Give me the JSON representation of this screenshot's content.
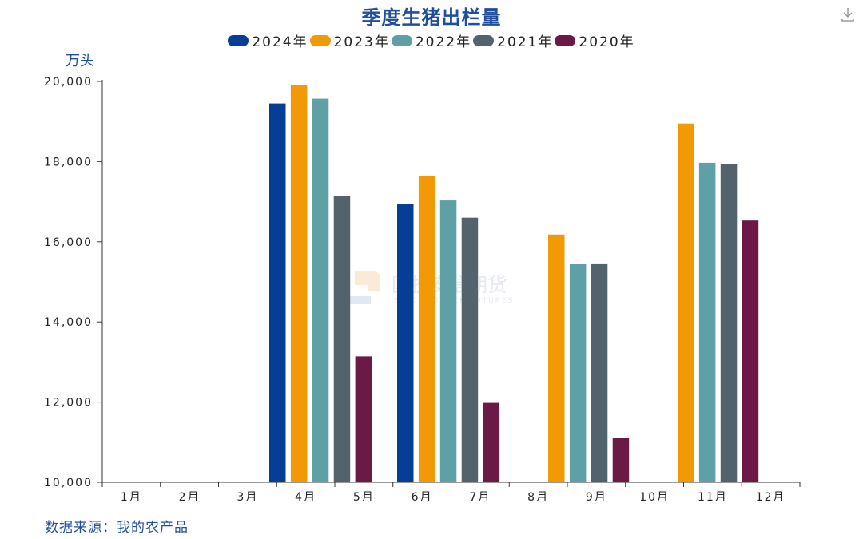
{
  "header": {
    "title": "季度生猪出栏量",
    "unit": "万头"
  },
  "watermark": {
    "text": "国投安信期货",
    "subtext": "SDIC ESSENCE FUTURES"
  },
  "footer": {
    "source": "数据来源：我的农产品"
  },
  "icons": {
    "download": "download-icon"
  },
  "chart_data": {
    "type": "bar",
    "title": "季度生猪出栏量",
    "ylabel": "万头",
    "xlabel": "",
    "ylim": [
      10000,
      20000
    ],
    "yticks": [
      10000,
      12000,
      14000,
      16000,
      18000,
      20000
    ],
    "ytick_labels": [
      "10,000",
      "12,000",
      "14,000",
      "16,000",
      "18,000",
      "20,000"
    ],
    "grid": false,
    "legend_position": "top-center",
    "categories": [
      "1月",
      "2月",
      "3月",
      "4月",
      "5月",
      "6月",
      "7月",
      "8月",
      "9月",
      "10月",
      "11月",
      "12月"
    ],
    "series": [
      {
        "name": "2024年",
        "color": "#063d96",
        "values": [
          null,
          null,
          null,
          19450,
          null,
          16950,
          null,
          null,
          null,
          null,
          null,
          null
        ]
      },
      {
        "name": "2023年",
        "color": "#f29a05",
        "values": [
          null,
          null,
          null,
          19900,
          null,
          17650,
          null,
          16180,
          null,
          null,
          18950,
          null
        ]
      },
      {
        "name": "2022年",
        "color": "#5fa0a7",
        "values": [
          null,
          null,
          null,
          19570,
          null,
          17030,
          null,
          null,
          15450,
          null,
          17970,
          null
        ]
      },
      {
        "name": "2021年",
        "color": "#53636d",
        "values": [
          null,
          null,
          null,
          17150,
          null,
          16600,
          null,
          null,
          15460,
          null,
          17940,
          null
        ]
      },
      {
        "name": "2020年",
        "color": "#6a1a45",
        "values": [
          null,
          null,
          null,
          null,
          13140,
          null,
          11980,
          null,
          11100,
          null,
          null,
          16530
        ]
      }
    ],
    "bar_groups": [
      {
        "series": [
          0,
          1,
          2,
          3,
          4
        ]
      },
      {
        "series": [
          0,
          1,
          2,
          3,
          4
        ]
      },
      {
        "series": [
          1,
          2,
          3,
          4
        ]
      },
      {
        "series": [
          1,
          2,
          3,
          4
        ]
      }
    ]
  }
}
